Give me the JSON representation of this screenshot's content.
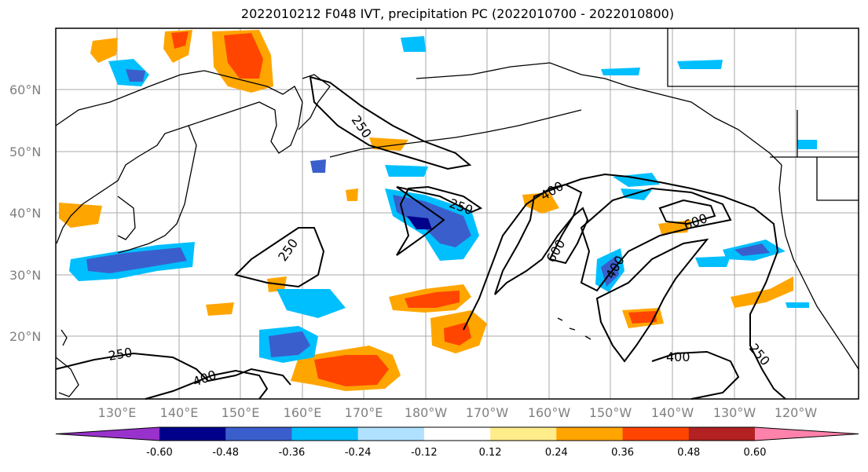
{
  "title": "2022010212 F048 IVT, precipitation PC (2022010700 - 2022010800)",
  "map": {
    "lat_labels": [
      "60°N",
      "50°N",
      "40°N",
      "30°N",
      "20°N"
    ],
    "lon_labels": [
      "130°E",
      "140°E",
      "150°E",
      "160°E",
      "170°E",
      "180°W",
      "170°W",
      "160°W",
      "150°W",
      "140°W",
      "130°W",
      "120°W"
    ],
    "contour_labels": [
      "250",
      "250",
      "250",
      "250",
      "250",
      "400",
      "400",
      "400",
      "600",
      "600",
      "400"
    ]
  },
  "colorbar": {
    "colors": [
      "#9932cc",
      "#00008b",
      "#3a5fcd",
      "#00bfff",
      "#b0e2ff",
      "#ffffff",
      "#ffec8b",
      "#ffa500",
      "#ff4500",
      "#b22222",
      "#ff82ab"
    ],
    "tick_labels": [
      "-0.60",
      "-0.48",
      "-0.36",
      "-0.24",
      "-0.12",
      "0.12",
      "0.24",
      "0.36",
      "0.48",
      "0.60"
    ]
  }
}
